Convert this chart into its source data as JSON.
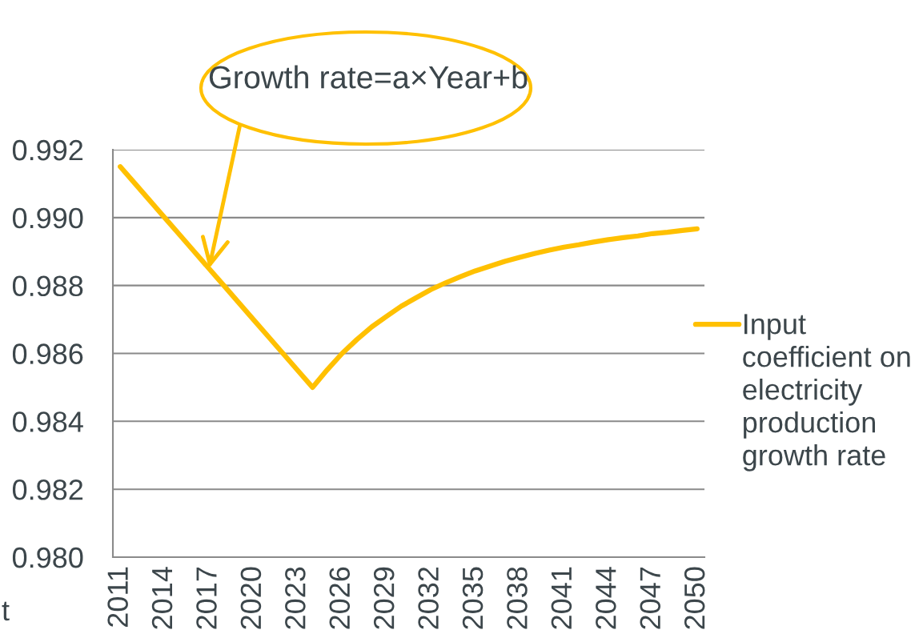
{
  "chart_data": {
    "type": "line",
    "categories": [
      "2011",
      null,
      null,
      "2014",
      null,
      null,
      "2017",
      null,
      null,
      "2020",
      null,
      null,
      "2023",
      null,
      null,
      "2026",
      null,
      null,
      "2029",
      null,
      null,
      "2032",
      null,
      null,
      "2035",
      null,
      null,
      "2038",
      null,
      null,
      "2041",
      null,
      null,
      "2044",
      null,
      null,
      "2047",
      null,
      null,
      "2050"
    ],
    "series": [
      {
        "name": "Input coefficient on electricity production growth rate",
        "color": "#ffc000",
        "values": [
          0.9915,
          0.991,
          0.9905,
          0.99,
          0.9895,
          0.989,
          0.9885,
          0.988,
          0.9875,
          0.987,
          0.9865,
          0.986,
          0.9855,
          0.985,
          0.98552,
          0.986,
          0.98641,
          0.98678,
          0.98709,
          0.98739,
          0.98764,
          0.98788,
          0.98808,
          0.98826,
          0.98843,
          0.98857,
          0.98871,
          0.98883,
          0.98894,
          0.98904,
          0.98913,
          0.9892,
          0.98928,
          0.98935,
          0.98941,
          0.98946,
          0.98953,
          0.98957,
          0.98962,
          0.98967
        ]
      }
    ],
    "ylim": [
      0.98,
      0.992
    ],
    "yticks": [
      {
        "value": 0.98,
        "label": "0.980"
      },
      0.982,
      0.984,
      0.986,
      0.988,
      {
        "value": 0.99,
        "label": "0.990"
      },
      0.992
    ],
    "grid": "y",
    "legend": "right",
    "annotations": [
      {
        "text": "Growth rate=a×Year+b",
        "x": "2017",
        "y": 0.9885
      },
      "t"
    ]
  }
}
